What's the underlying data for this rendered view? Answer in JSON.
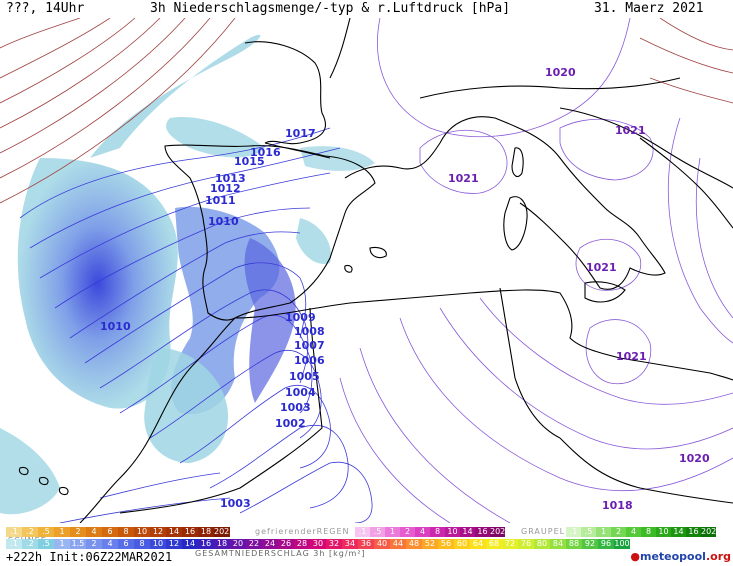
{
  "header": {
    "left": "???, 14Uhr",
    "title": "3h Niederschlagsmenge/-typ & r.Luftdruck [hPa]",
    "date": "31. Maerz 2021"
  },
  "pressure_labels": [
    {
      "text": "1017",
      "tone": "blue"
    },
    {
      "text": "1016",
      "tone": "blue"
    },
    {
      "text": "1015",
      "tone": "blue"
    },
    {
      "text": "1013",
      "tone": "blue"
    },
    {
      "text": "1012",
      "tone": "blue"
    },
    {
      "text": "1011",
      "tone": "blue"
    },
    {
      "text": "1010",
      "tone": "blue"
    },
    {
      "text": "1010",
      "tone": "blue"
    },
    {
      "text": "1009",
      "tone": "blue"
    },
    {
      "text": "1008",
      "tone": "blue"
    },
    {
      "text": "1007",
      "tone": "blue"
    },
    {
      "text": "1006",
      "tone": "blue"
    },
    {
      "text": "1005",
      "tone": "blue"
    },
    {
      "text": "1004",
      "tone": "blue"
    },
    {
      "text": "1003",
      "tone": "blue"
    },
    {
      "text": "1002",
      "tone": "blue"
    },
    {
      "text": "1003",
      "tone": "blue"
    },
    {
      "text": "1020",
      "tone": "purple"
    },
    {
      "text": "1021",
      "tone": "purple"
    },
    {
      "text": "1021",
      "tone": "purple"
    },
    {
      "text": "1021",
      "tone": "purple"
    },
    {
      "text": "1021",
      "tone": "purple"
    },
    {
      "text": "1020",
      "tone": "purple"
    },
    {
      "text": "1018",
      "tone": "purple"
    }
  ],
  "legend": {
    "schnee": {
      "label": "SCHNEE",
      "values": [
        ".1",
        ".2",
        ".5",
        "1",
        "2",
        "4",
        "6",
        "8",
        "10",
        "12",
        "14",
        "16",
        "18",
        "2025+"
      ],
      "colors": [
        "#f5d98a",
        "#f2c65a",
        "#efb23a",
        "#eba02a",
        "#e58e1e",
        "#dd7c16",
        "#d36a10",
        "#c8580c",
        "#bd4a0a",
        "#b23e08",
        "#a63306",
        "#9a2a05",
        "#8d2204",
        "#7d1a03"
      ]
    },
    "regen": {
      "label": "gefrierenderREGEN",
      "values": [
        ".1",
        ".5",
        "1",
        "2",
        "4",
        "8",
        "10",
        "14",
        "16",
        "2025+"
      ],
      "colors": [
        "#f7c6f0",
        "#f2a0e6",
        "#ec7ada",
        "#e45ccd",
        "#da40bf",
        "#cc28ae",
        "#bb1a9c",
        "#a81089",
        "#940a77",
        "#7f0565"
      ]
    },
    "graupel": {
      "label": "GRAUPEL",
      "values": [
        ".1",
        ".5",
        "1",
        "2",
        "4",
        "8",
        "10",
        "14",
        "16",
        "2025+"
      ],
      "colors": [
        "#d6f5c4",
        "#b6ec9c",
        "#95e276",
        "#74d753",
        "#55ca38",
        "#3dbb26",
        "#2ba91a",
        "#1f9612",
        "#14830c",
        "#0b7007"
      ]
    },
    "gesamt": {
      "label": "GESAMTNIEDERSCHLAG 3h [kg/m²]",
      "values": [
        ".1",
        ".2",
        ".5",
        "1",
        "1.5",
        "2",
        "4",
        "6",
        "8",
        "10",
        "12",
        "14",
        "16",
        "18",
        "20",
        "22",
        "24",
        "26",
        "28",
        "30",
        "32",
        "34",
        "36",
        "40",
        "44",
        "48",
        "52",
        "56",
        "60",
        "64",
        "68",
        "72",
        "76",
        "80",
        "84",
        "88",
        "92",
        "96",
        "100"
      ],
      "colors": [
        "#bfe8ef",
        "#9fdbe7",
        "#7fcfe0",
        "#9ab6f0",
        "#8aa4ef",
        "#7992ee",
        "#6980ec",
        "#586ee8",
        "#4a5ce3",
        "#3c4adc",
        "#3038d2",
        "#2628c6",
        "#3a1fbd",
        "#5019b4",
        "#6614aa",
        "#7c10a0",
        "#920c96",
        "#a8098b",
        "#be0780",
        "#d30876",
        "#e3166a",
        "#ec2a5e",
        "#f24252",
        "#f65c46",
        "#f9763a",
        "#fb8f2f",
        "#fca726",
        "#fdbd1f",
        "#fdd01b",
        "#fce01b",
        "#f5ec20",
        "#e6f028",
        "#cfee30",
        "#b4e838",
        "#95df3e",
        "#73d442",
        "#52c643",
        "#33b642",
        "#19a33e"
      ]
    }
  },
  "footer": {
    "forecast": "+222h Init:06Z22MAR2021",
    "logo_mark": "●",
    "logo_text": "meteopool",
    "logo_domain": ".org"
  },
  "colors": {
    "isobar_low": "#3a3ad8",
    "isobar_high": "#8a5ad8",
    "isotherm_red": "#a04040",
    "coast": "#000000",
    "precip_light": "#9fd6e4",
    "precip_mid": "#7f9fe8",
    "precip_core": "#5a66e0"
  }
}
